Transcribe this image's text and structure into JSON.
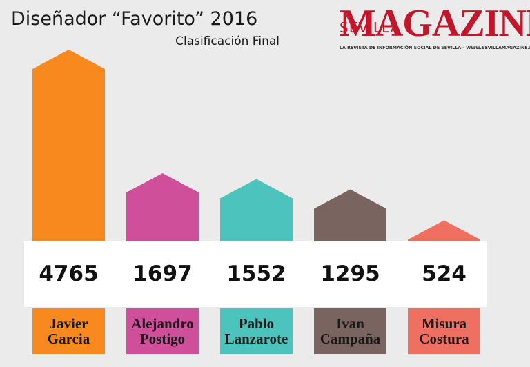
{
  "chart_data": {
    "type": "bar",
    "title": "Diseñador “Favorito” 2016",
    "subtitle": "Clasificación Final",
    "brand": {
      "sevilla": "SEVILLA",
      "magazine": "MAGAZINE",
      "tagline": "LA REVISTA DE INFORMACIÓN SOCIAL DE SEVILLA - WWW.SEVILLAMAGAZINE.ES"
    },
    "categories": [
      "Javier\nGarcia",
      "Alejandro\nPostigo",
      "Pablo\nLanzarote",
      "Ivan\nCampaña",
      "Misura\nCostura"
    ],
    "values": [
      4765,
      1697,
      1552,
      1295,
      524
    ],
    "colors": [
      "#f7891f",
      "#cf4f9b",
      "#4cc4bd",
      "#7a645f",
      "#ef6f60"
    ]
  }
}
